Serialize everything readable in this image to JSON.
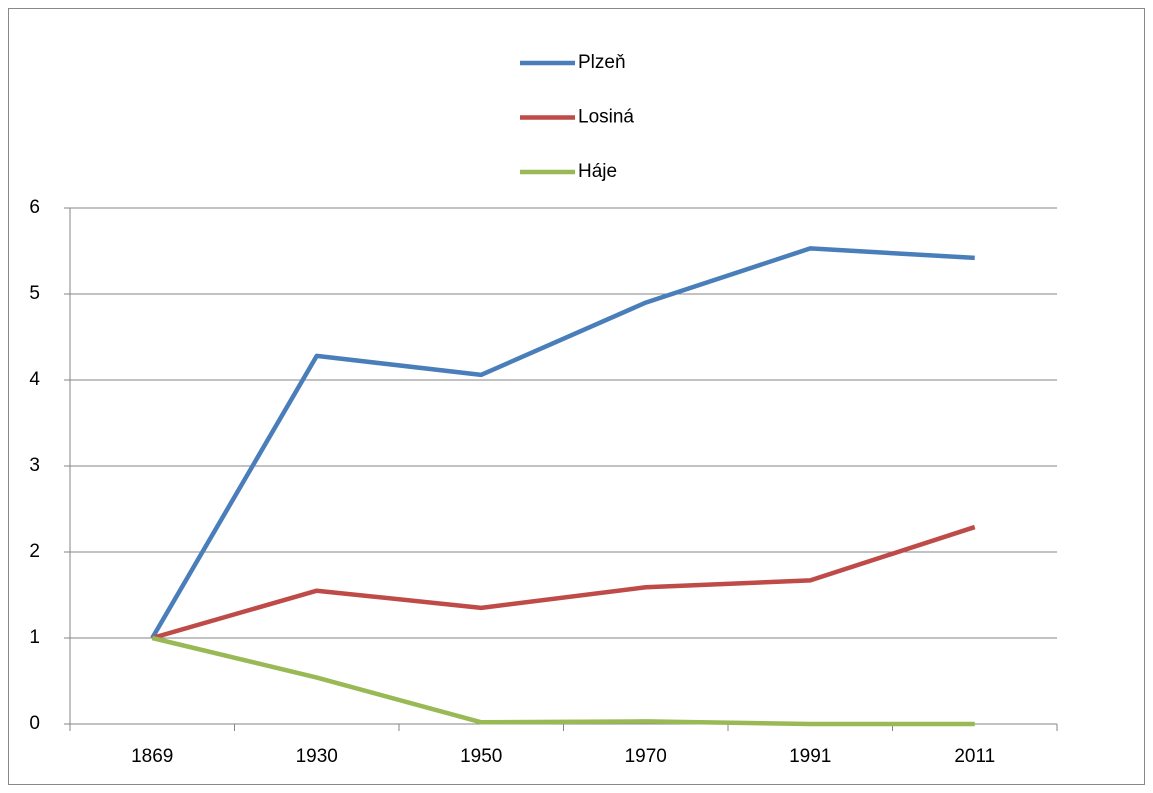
{
  "chart_data": {
    "type": "line",
    "categories": [
      "1869",
      "1930",
      "1950",
      "1970",
      "1991",
      "2011"
    ],
    "series": [
      {
        "name": "Plzeň",
        "color": "#4a7ebb",
        "values": [
          1,
          4.28,
          4.06,
          4.9,
          5.53,
          5.42
        ]
      },
      {
        "name": "Losiná",
        "color": "#be4b48",
        "values": [
          1,
          1.55,
          1.35,
          1.59,
          1.67,
          2.29
        ]
      },
      {
        "name": "Háje",
        "color": "#98b954",
        "values": [
          1,
          0.54,
          0.02,
          0.03,
          0,
          0
        ]
      }
    ],
    "ylim": [
      0,
      6
    ],
    "yticks": [
      0,
      1,
      2,
      3,
      4,
      5,
      6
    ],
    "grid": true,
    "legend": "top"
  }
}
